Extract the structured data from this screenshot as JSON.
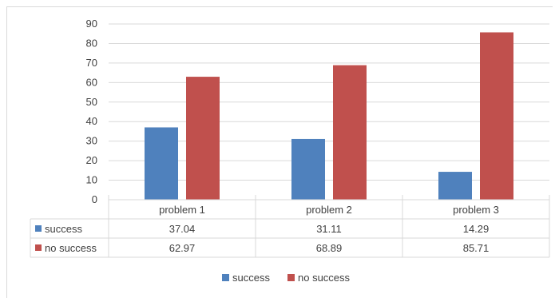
{
  "chart_data": {
    "type": "bar",
    "categories": [
      "problem 1",
      "problem 2",
      "problem 3"
    ],
    "series": [
      {
        "name": "success",
        "values": [
          37.04,
          31.11,
          14.29
        ],
        "color": "#4f81bd"
      },
      {
        "name": "no success",
        "values": [
          62.97,
          68.89,
          85.71
        ],
        "color": "#c0504d"
      }
    ],
    "y_ticks": [
      "0",
      "10",
      "20",
      "30",
      "40",
      "50",
      "60",
      "70",
      "80",
      "90"
    ],
    "ylim": [
      0,
      90
    ],
    "table_values": [
      [
        "37.04",
        "31.11",
        "14.29"
      ],
      [
        "62.97",
        "68.89",
        "85.71"
      ]
    ],
    "legend": {
      "position": "bottom",
      "items": [
        "success",
        "no success"
      ]
    },
    "grid": true
  }
}
